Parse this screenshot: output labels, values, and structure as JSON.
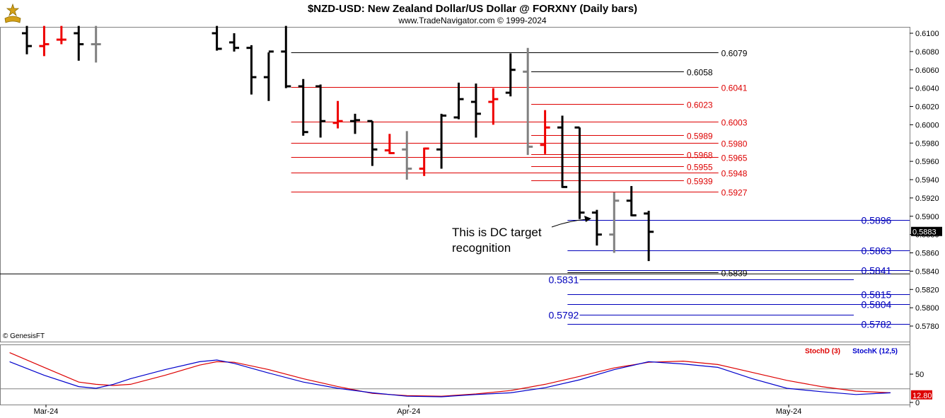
{
  "header": {
    "title": "$NZD-USD:  New Zealand Dollar/US Dollar @ FORXNY  (Daily bars)",
    "subtitle": "www.TradeNavigator.com © 1999-2024",
    "logo_icon": "trade-navigator-logo-icon",
    "copyright": "© GenesisFT"
  },
  "chart_data": [
    {
      "type": "ohlc-bar",
      "title": "$NZD-USD:  New Zealand Dollar/US Dollar @ FORXNY  (Daily bars)",
      "y_ticks": [
        "0.6100",
        "0.6080",
        "0.6060",
        "0.6040",
        "0.6020",
        "0.6000",
        "0.5980",
        "0.5960",
        "0.5940",
        "0.5920",
        "0.5900",
        "0.5880",
        "0.5860",
        "0.5840",
        "0.5820",
        "0.5800",
        "0.5780"
      ],
      "ylim": [
        0.5767,
        0.611
      ],
      "x_labels": [
        {
          "label": "Mar-24",
          "index": 0
        },
        {
          "label": "Apr-24",
          "index": 21
        },
        {
          "label": "May-24",
          "index": 43
        }
      ],
      "last_price": "0.5883",
      "bar_colors": {
        "black": "#000000",
        "red": "#ee0000",
        "gray": "#808080"
      },
      "bars": [
        {
          "i": 0,
          "o": 0.61,
          "h": 0.6108,
          "l": 0.6077,
          "c": 0.6086,
          "color": "black"
        },
        {
          "i": 1,
          "o": 0.6086,
          "h": 0.6108,
          "l": 0.6075,
          "c": 0.6088,
          "color": "red"
        },
        {
          "i": 2,
          "o": 0.6093,
          "h": 0.6108,
          "l": 0.6088,
          "c": 0.6093,
          "color": "red"
        },
        {
          "i": 3,
          "o": 0.61,
          "h": 0.6108,
          "l": 0.607,
          "c": 0.6088,
          "color": "black"
        },
        {
          "i": 4,
          "o": 0.6088,
          "h": 0.6108,
          "l": 0.6068,
          "c": 0.6088,
          "color": "gray"
        },
        {
          "i": 11,
          "o": 0.61,
          "h": 0.6108,
          "l": 0.6081,
          "c": 0.6083,
          "color": "black"
        },
        {
          "i": 12,
          "o": 0.609,
          "h": 0.61,
          "l": 0.608,
          "c": 0.6084,
          "color": "black"
        },
        {
          "i": 13,
          "o": 0.6084,
          "h": 0.6087,
          "l": 0.6033,
          "c": 0.6052,
          "color": "black"
        },
        {
          "i": 14,
          "o": 0.6052,
          "h": 0.6079,
          "l": 0.6026,
          "c": 0.608,
          "color": "black"
        },
        {
          "i": 15,
          "o": 0.608,
          "h": 0.6108,
          "l": 0.604,
          "c": 0.6042,
          "color": "black"
        },
        {
          "i": 16,
          "o": 0.6042,
          "h": 0.605,
          "l": 0.5988,
          "c": 0.5992,
          "color": "black"
        },
        {
          "i": 17,
          "o": 0.6042,
          "h": 0.6044,
          "l": 0.5986,
          "c": 0.6004,
          "color": "black"
        },
        {
          "i": 18,
          "o": 0.6002,
          "h": 0.6026,
          "l": 0.5996,
          "c": 0.6004,
          "color": "red"
        },
        {
          "i": 19,
          "o": 0.6004,
          "h": 0.6012,
          "l": 0.599,
          "c": 0.6005,
          "color": "black"
        },
        {
          "i": 20,
          "o": 0.6004,
          "h": 0.6004,
          "l": 0.5955,
          "c": 0.5973,
          "color": "black"
        },
        {
          "i": 21,
          "o": 0.5972,
          "h": 0.599,
          "l": 0.5968,
          "c": 0.5969,
          "color": "red"
        },
        {
          "i": 22,
          "o": 0.5973,
          "h": 0.5993,
          "l": 0.594,
          "c": 0.5952,
          "color": "gray"
        },
        {
          "i": 23,
          "o": 0.5952,
          "h": 0.5975,
          "l": 0.5944,
          "c": 0.5974,
          "color": "red"
        },
        {
          "i": 24,
          "o": 0.5973,
          "h": 0.6012,
          "l": 0.5952,
          "c": 0.601,
          "color": "black"
        },
        {
          "i": 25,
          "o": 0.6008,
          "h": 0.6046,
          "l": 0.6006,
          "c": 0.6028,
          "color": "black"
        },
        {
          "i": 26,
          "o": 0.6025,
          "h": 0.6045,
          "l": 0.5986,
          "c": 0.6012,
          "color": "black"
        },
        {
          "i": 27,
          "o": 0.6025,
          "h": 0.604,
          "l": 0.6,
          "c": 0.6028,
          "color": "red"
        },
        {
          "i": 28,
          "o": 0.6035,
          "h": 0.6078,
          "l": 0.6031,
          "c": 0.606,
          "color": "black"
        },
        {
          "i": 29,
          "o": 0.6058,
          "h": 0.6084,
          "l": 0.5967,
          "c": 0.5976,
          "color": "gray"
        },
        {
          "i": 30,
          "o": 0.5978,
          "h": 0.6016,
          "l": 0.5968,
          "c": 0.5997,
          "color": "red"
        },
        {
          "i": 31,
          "o": 0.5997,
          "h": 0.601,
          "l": 0.5931,
          "c": 0.5932,
          "color": "black"
        },
        {
          "i": 32,
          "o": 0.5997,
          "h": 0.5997,
          "l": 0.5897,
          "c": 0.5904,
          "color": "black"
        },
        {
          "i": 33,
          "o": 0.5904,
          "h": 0.5907,
          "l": 0.5868,
          "c": 0.588,
          "color": "black"
        },
        {
          "i": 34,
          "o": 0.588,
          "h": 0.5926,
          "l": 0.586,
          "c": 0.5917,
          "color": "gray"
        },
        {
          "i": 35,
          "o": 0.5917,
          "h": 0.5933,
          "l": 0.59,
          "c": 0.5901,
          "color": "black"
        },
        {
          "i": 36,
          "o": 0.5903,
          "h": 0.5906,
          "l": 0.5851,
          "c": 0.5883,
          "color": "black"
        }
      ],
      "levels": [
        {
          "value": "0.6079",
          "y": 0.6079,
          "color": "#000000",
          "from_index": 15.3,
          "label_index": 40.2,
          "big": false
        },
        {
          "value": "0.6058",
          "y": 0.6058,
          "color": "#000000",
          "from_index": 29.2,
          "label_index": 38.2,
          "big": false
        },
        {
          "value": "0.6041",
          "y": 0.6041,
          "color": "#dd0000",
          "from_index": 15.3,
          "label_index": 40.2,
          "big": false
        },
        {
          "value": "0.6023",
          "y": 0.6023,
          "color": "#dd0000",
          "from_index": 29.2,
          "label_index": 38.2,
          "big": false
        },
        {
          "value": "0.6003",
          "y": 0.6003,
          "color": "#dd0000",
          "from_index": 15.3,
          "label_index": 40.2,
          "big": false
        },
        {
          "value": "0.5989",
          "y": 0.5989,
          "color": "#dd0000",
          "from_index": 29.2,
          "label_index": 38.2,
          "big": false
        },
        {
          "value": "0.5980",
          "y": 0.598,
          "color": "#dd0000",
          "from_index": 15.3,
          "label_index": 40.2,
          "big": false
        },
        {
          "value": "0.5968",
          "y": 0.5968,
          "color": "#dd0000",
          "from_index": 29.2,
          "label_index": 38.2,
          "big": false
        },
        {
          "value": "0.5965",
          "y": 0.5965,
          "color": "#dd0000",
          "from_index": 15.3,
          "label_index": 40.2,
          "big": false
        },
        {
          "value": "0.5955",
          "y": 0.5955,
          "color": "#dd0000",
          "from_index": 29.2,
          "label_index": 38.2,
          "big": false
        },
        {
          "value": "0.5948",
          "y": 0.5948,
          "color": "#dd0000",
          "from_index": 15.3,
          "label_index": 40.2,
          "big": false
        },
        {
          "value": "0.5939",
          "y": 0.5939,
          "color": "#dd0000",
          "from_index": 29.2,
          "label_index": 38.2,
          "big": false
        },
        {
          "value": "0.5927",
          "y": 0.5927,
          "color": "#dd0000",
          "from_index": 15.3,
          "label_index": 40.2,
          "big": false
        },
        {
          "value": "0.5896",
          "y": 0.5896,
          "color": "#0000bb",
          "from_index": 31.3,
          "label_index": 48.3,
          "big": true
        },
        {
          "value": "0.5863",
          "y": 0.5863,
          "color": "#0000bb",
          "from_index": 31.3,
          "label_index": 48.3,
          "big": true
        },
        {
          "value": "0.5841",
          "y": 0.5841,
          "color": "#0000bb",
          "from_index": 31.3,
          "label_index": 48.3,
          "big": true
        },
        {
          "value": "0.5839",
          "y": 0.5839,
          "color": "#000000",
          "from_index": 31.3,
          "label_index": 40.2,
          "big": false
        },
        {
          "value": "0.5831",
          "y": 0.5831,
          "color": "#0000bb",
          "from_index": 31.3,
          "label_index": 30.2,
          "big": true
        },
        {
          "value": "0.5815",
          "y": 0.5815,
          "color": "#0000bb",
          "from_index": 31.3,
          "label_index": 48.3,
          "big": true
        },
        {
          "value": "0.5804",
          "y": 0.5804,
          "color": "#0000bb",
          "from_index": 31.3,
          "label_index": 48.3,
          "big": true
        },
        {
          "value": "0.5792",
          "y": 0.5792,
          "color": "#0000bb",
          "from_index": 31.3,
          "label_index": 30.2,
          "big": true
        },
        {
          "value": "0.5782",
          "y": 0.5782,
          "color": "#0000bb",
          "from_index": 31.3,
          "label_index": 48.3,
          "big": true
        }
      ],
      "horizontal_line": 0.5837,
      "annotation": {
        "line1": "This is DC target",
        "line2": "recognition"
      }
    },
    {
      "type": "line",
      "panel": "stochastic",
      "y_ticks": [
        "50",
        "0"
      ],
      "ylim": [
        0,
        100
      ],
      "last_value": "12.80",
      "reference_line": 24,
      "series": [
        {
          "name": "StochD (3)",
          "color": "#dd0000",
          "points": [
            [
              -1,
              88
            ],
            [
              1,
              62
            ],
            [
              3,
              36
            ],
            [
              4,
              32
            ],
            [
              5,
              30
            ],
            [
              6,
              32
            ],
            [
              8,
              48
            ],
            [
              10,
              66
            ],
            [
              11,
              72
            ],
            [
              12,
              71
            ],
            [
              14,
              58
            ],
            [
              16,
              42
            ],
            [
              18,
              28
            ],
            [
              20,
              16
            ],
            [
              22,
              12
            ],
            [
              24,
              11
            ],
            [
              26,
              15
            ],
            [
              28,
              21
            ],
            [
              30,
              32
            ],
            [
              32,
              46
            ],
            [
              34,
              61
            ],
            [
              36,
              71
            ],
            [
              38,
              73
            ],
            [
              40,
              67
            ],
            [
              42,
              53
            ],
            [
              44,
              39
            ],
            [
              46,
              28
            ],
            [
              48,
              20
            ],
            [
              50,
              17
            ]
          ]
        },
        {
          "name": "StochK (12,5)",
          "color": "#0000cc",
          "points": [
            [
              -1,
              72
            ],
            [
              1,
              48
            ],
            [
              3,
              28
            ],
            [
              4,
              25
            ],
            [
              5,
              32
            ],
            [
              6,
              42
            ],
            [
              8,
              58
            ],
            [
              10,
              72
            ],
            [
              11,
              75
            ],
            [
              12,
              69
            ],
            [
              14,
              52
            ],
            [
              16,
              36
            ],
            [
              18,
              25
            ],
            [
              20,
              17
            ],
            [
              22,
              11
            ],
            [
              24,
              10
            ],
            [
              26,
              14
            ],
            [
              28,
              17
            ],
            [
              30,
              26
            ],
            [
              32,
              40
            ],
            [
              34,
              58
            ],
            [
              36,
              72
            ],
            [
              38,
              68
            ],
            [
              40,
              62
            ],
            [
              42,
              42
            ],
            [
              44,
              25
            ],
            [
              46,
              19
            ],
            [
              48,
              14
            ],
            [
              50,
              17
            ]
          ]
        }
      ]
    }
  ]
}
